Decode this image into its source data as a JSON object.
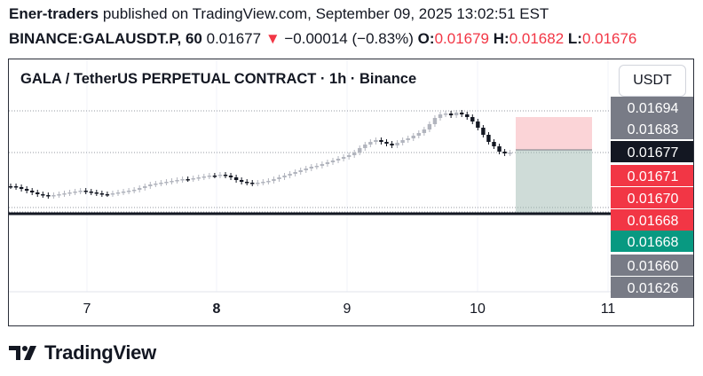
{
  "header": {
    "author": "Ener-traders",
    "published": "published on TradingView.com, September 09, 2025 13:02:51 EST",
    "symbol": "BINANCE:GALAUSDT.P, 60",
    "last": "0.01677",
    "change": "−0.00014 (−0.83%)",
    "open_label": "O:",
    "open": "0.01679",
    "high_label": "H:",
    "high": "0.01682",
    "low_label": "L:",
    "low": "0.01676"
  },
  "chart": {
    "title": "GALA / TetherUS PERPETUAL CONTRACT · 1h · Binance",
    "currency_button": "USDT",
    "x_ticks": [
      {
        "label": "7",
        "bold": false
      },
      {
        "label": "8",
        "bold": true
      },
      {
        "label": "9",
        "bold": false
      },
      {
        "label": "10",
        "bold": false
      },
      {
        "label": "11",
        "bold": false
      }
    ],
    "price_labels": [
      {
        "text": "0.01694",
        "color": "#787b86"
      },
      {
        "text": "0.01683",
        "color": "#787b86"
      },
      {
        "text": "0.01677",
        "color": "#131722"
      },
      {
        "text": "0.01671",
        "color": "#f23645"
      },
      {
        "text": "0.01670",
        "color": "#f23645"
      },
      {
        "text": "0.01668",
        "color": "#f23645"
      },
      {
        "text": "0.01668",
        "color": "#089981"
      },
      {
        "text": "0.01660",
        "color": "#787b86"
      },
      {
        "text": "0.01626",
        "color": "#787b86"
      }
    ],
    "position": {
      "stop_color": "#f7a9b0",
      "target_color": "#9fb9b2"
    }
  },
  "footer": {
    "brand": "TradingView",
    "logo_icon": "tradingview-logo-icon"
  },
  "colors": {
    "bull": "#b2b5be",
    "bear": "#131722",
    "down": "#f23645"
  }
}
